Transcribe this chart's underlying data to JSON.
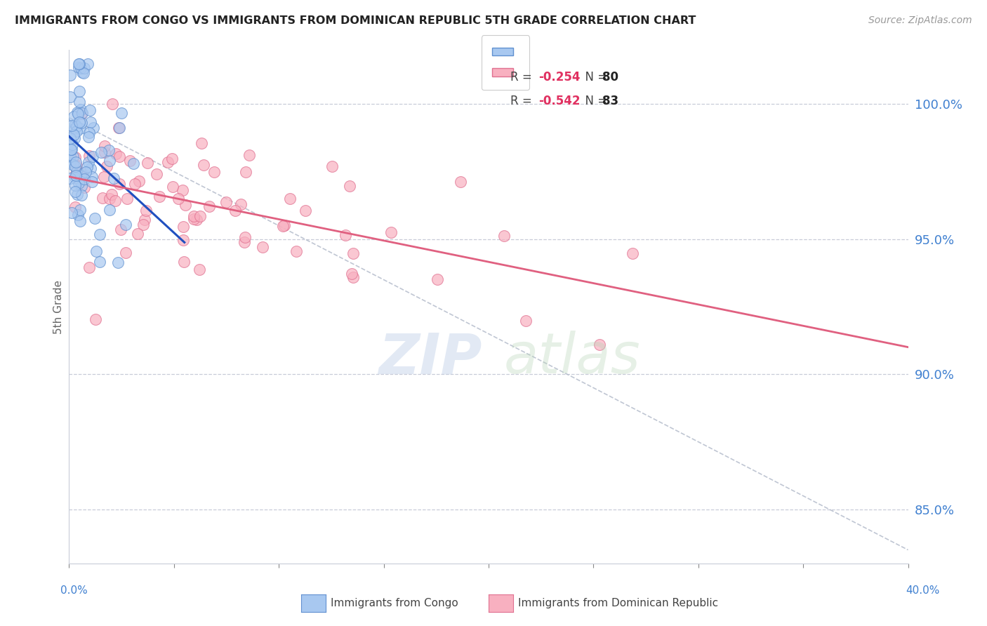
{
  "title": "IMMIGRANTS FROM CONGO VS IMMIGRANTS FROM DOMINICAN REPUBLIC 5TH GRADE CORRELATION CHART",
  "source": "Source: ZipAtlas.com",
  "ylabel": "5th Grade",
  "legend_R_congo": "-0.254",
  "legend_N_congo": "80",
  "legend_R_dr": "-0.542",
  "legend_N_dr": "83",
  "color_congo_fill": "#a8c8f0",
  "color_congo_edge": "#6090d0",
  "color_dr_fill": "#f8b0c0",
  "color_dr_edge": "#e07090",
  "color_blue_line": "#2050c0",
  "color_pink_line": "#e06080",
  "color_gray_dash": "#b0b8c8",
  "color_right_labels": "#4080d0",
  "color_grid": "#c8ccd8",
  "xlim": [
    0.0,
    40.0
  ],
  "ylim": [
    83.0,
    102.0
  ],
  "yticks": [
    85.0,
    90.0,
    95.0,
    100.0
  ],
  "ytick_labels": [
    "85.0%",
    "90.0%",
    "95.0%",
    "100.0%"
  ]
}
